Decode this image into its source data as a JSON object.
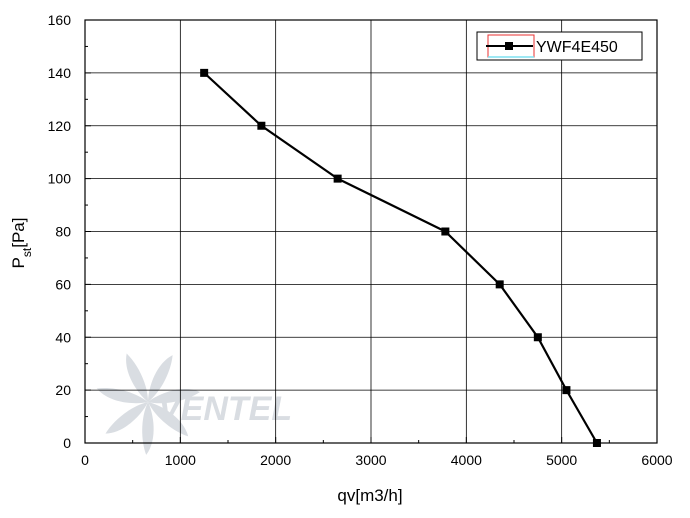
{
  "chart_data": {
    "type": "line",
    "xlabel": "qv[m3/h]",
    "ylabel": {
      "main": "P",
      "sub": "st",
      "unit": "[Pa]"
    },
    "xlim": [
      0,
      6000
    ],
    "ylim": [
      0,
      160
    ],
    "x_ticks": [
      0,
      1000,
      2000,
      3000,
      4000,
      5000,
      6000
    ],
    "y_ticks": [
      0,
      20,
      40,
      60,
      80,
      100,
      120,
      140,
      160
    ],
    "x_tick_labels": [
      "0",
      "1000",
      "2000",
      "3000",
      "4000",
      "5000",
      "6000"
    ],
    "y_tick_labels": [
      "0",
      "20",
      "40",
      "60",
      "80",
      "100",
      "120",
      "140",
      "160"
    ],
    "grid": true,
    "legend_position": "top-right",
    "series": [
      {
        "name": "YWF4E450",
        "color": "#000000",
        "marker": "square",
        "x": [
          1250,
          1850,
          2650,
          3780,
          4350,
          4750,
          5050,
          5370
        ],
        "y": [
          140,
          120,
          100,
          80,
          60,
          40,
          20,
          0
        ]
      }
    ]
  },
  "watermark": {
    "text": "VENTEL",
    "color": "#d9dde2"
  }
}
